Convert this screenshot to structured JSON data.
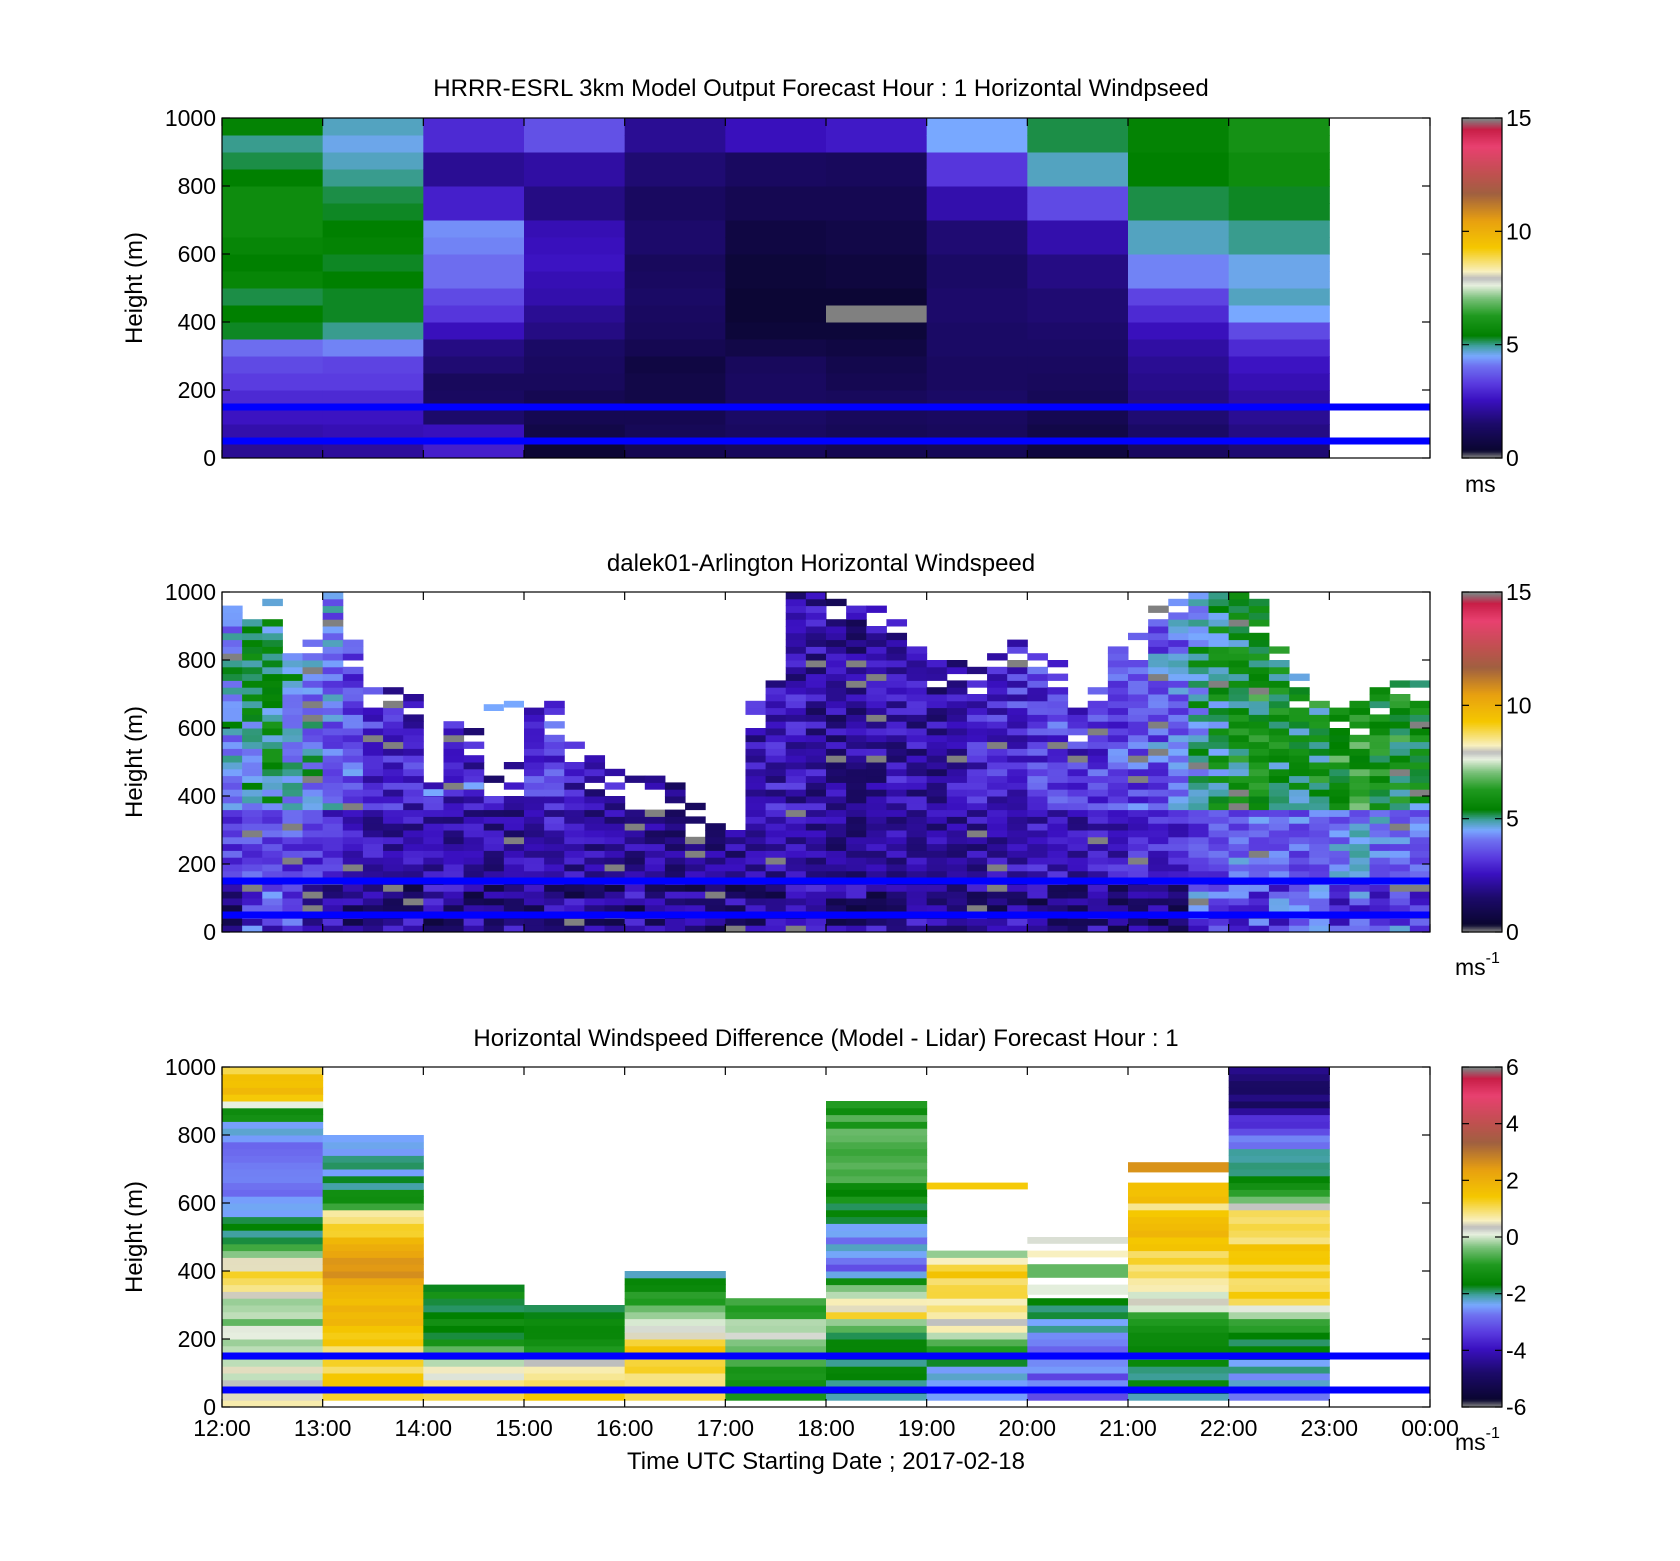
{
  "x_axis": {
    "ticks": [
      "12:00",
      "13:00",
      "14:00",
      "15:00",
      "16:00",
      "17:00",
      "18:00",
      "19:00",
      "20:00",
      "21:00",
      "22:00",
      "23:00",
      "00:00"
    ],
    "label": "Time UTC  Starting Date ; 2017-02-18"
  },
  "colormap": {
    "stops": [
      {
        "v": 0.0,
        "c": "#808080"
      },
      {
        "v": 0.02,
        "c": "#0a0630"
      },
      {
        "v": 0.1,
        "c": "#1c0a6a"
      },
      {
        "v": 0.17,
        "c": "#3a10c0"
      },
      {
        "v": 0.22,
        "c": "#5a3ce0"
      },
      {
        "v": 0.27,
        "c": "#6e70f0"
      },
      {
        "v": 0.3,
        "c": "#78a8ff"
      },
      {
        "v": 0.33,
        "c": "#40a0a0"
      },
      {
        "v": 0.36,
        "c": "#008000"
      },
      {
        "v": 0.42,
        "c": "#209a20"
      },
      {
        "v": 0.47,
        "c": "#78c078"
      },
      {
        "v": 0.51,
        "c": "#e8f0e0"
      },
      {
        "v": 0.53,
        "c": "#bdbdbd"
      },
      {
        "v": 0.55,
        "c": "#f8f0c0"
      },
      {
        "v": 0.62,
        "c": "#f5c800"
      },
      {
        "v": 0.7,
        "c": "#e8a010"
      },
      {
        "v": 0.78,
        "c": "#a06040"
      },
      {
        "v": 0.84,
        "c": "#c05050"
      },
      {
        "v": 0.92,
        "c": "#e84070"
      },
      {
        "v": 0.97,
        "c": "#c81e46"
      },
      {
        "v": 1.0,
        "c": "#808080"
      }
    ]
  },
  "reference_lines": {
    "heights_m": [
      150,
      50
    ],
    "color": "#0000ff"
  },
  "chart_data": [
    {
      "type": "heatmap",
      "title": "HRRR-ESRL 3km Model Output   Forecast Hour : 1 Horizontal Windpseed",
      "ylabel": "Height (m)",
      "ylim": [
        0,
        1000
      ],
      "yticks": [
        0,
        200,
        400,
        600,
        800,
        1000
      ],
      "xlim_hours": [
        12,
        24
      ],
      "colorbar": {
        "ticks": [
          0,
          5,
          10,
          15
        ],
        "range": [
          0,
          15
        ],
        "unit": "ms",
        "unit_sup": ""
      },
      "time_start": 12,
      "time_step": 1,
      "height_step_m": 50,
      "columns": [
        [
          2.0,
          2.3,
          2.6,
          3.0,
          3.3,
          3.5,
          4.0,
          5.3,
          5.4,
          5.2,
          5.6,
          5.4,
          5.6,
          5.8,
          5.8,
          5.8,
          5.4,
          5.2,
          5.0,
          5.5
        ],
        [
          2.1,
          2.4,
          2.6,
          3.0,
          3.3,
          3.4,
          4.2,
          5.0,
          5.3,
          5.3,
          5.4,
          5.3,
          5.5,
          5.4,
          5.3,
          5.2,
          5.0,
          4.8,
          4.6,
          4.8
        ],
        [
          2.8,
          2.5,
          1.5,
          1.3,
          1.2,
          1.6,
          1.8,
          2.5,
          3.2,
          3.5,
          4.0,
          4.0,
          4.2,
          4.3,
          2.8,
          2.8,
          2.0,
          2.0,
          3.0,
          3.0
        ],
        [
          0.4,
          0.8,
          1.0,
          1.0,
          1.2,
          1.3,
          1.4,
          1.8,
          2.0,
          2.3,
          2.4,
          2.6,
          2.5,
          2.4,
          1.8,
          1.8,
          2.2,
          2.2,
          3.6,
          3.6
        ],
        [
          1.0,
          1.1,
          1.0,
          0.8,
          0.8,
          0.7,
          1.0,
          1.2,
          1.3,
          1.4,
          1.3,
          1.2,
          1.5,
          1.5,
          1.3,
          1.3,
          1.6,
          1.6,
          2.0,
          2.0
        ],
        [
          1.2,
          1.3,
          1.4,
          1.3,
          1.3,
          1.2,
          0.8,
          0.5,
          0.4,
          0.4,
          0.5,
          0.5,
          0.7,
          0.7,
          1.0,
          1.0,
          1.3,
          1.3,
          2.5,
          2.5
        ],
        [
          1.0,
          1.1,
          1.2,
          1.2,
          1.0,
          0.9,
          0.7,
          0.5,
          0.0,
          0.4,
          0.6,
          0.6,
          0.8,
          0.8,
          1.0,
          1.0,
          1.2,
          1.2,
          2.7,
          2.7
        ],
        [
          1.1,
          1.2,
          1.3,
          1.4,
          1.3,
          1.3,
          1.4,
          1.4,
          1.5,
          1.5,
          1.4,
          1.4,
          1.6,
          1.6,
          2.3,
          2.3,
          3.2,
          3.2,
          4.5,
          4.5
        ],
        [
          0.6,
          0.8,
          1.0,
          1.1,
          1.2,
          1.3,
          1.4,
          1.5,
          1.6,
          1.6,
          1.8,
          1.8,
          2.3,
          2.3,
          3.5,
          3.5,
          4.8,
          4.8,
          5.2,
          5.2
        ],
        [
          1.3,
          1.4,
          1.6,
          1.8,
          1.9,
          2.0,
          2.2,
          2.5,
          3.0,
          3.4,
          4.2,
          4.2,
          4.8,
          4.8,
          5.2,
          5.2,
          5.4,
          5.4,
          5.5,
          5.5
        ],
        [
          1.6,
          1.8,
          2.0,
          2.2,
          2.4,
          2.6,
          3.0,
          3.5,
          4.5,
          4.8,
          4.6,
          4.6,
          5.0,
          5.0,
          5.3,
          5.3,
          5.8,
          5.8,
          6.0,
          6.0
        ]
      ]
    },
    {
      "type": "heatmap",
      "title": "dalek01-Arlington  Horizontal Windspeed",
      "ylabel": "Height (m)",
      "ylim": [
        0,
        1000
      ],
      "yticks": [
        0,
        200,
        400,
        600,
        800,
        1000
      ],
      "xlim_hours": [
        12,
        24
      ],
      "colorbar": {
        "ticks": [
          0,
          5,
          10,
          15
        ],
        "range": [
          0,
          15
        ],
        "unit": "ms",
        "unit_sup": "-1"
      },
      "time_start": 12,
      "time_step": 0.2,
      "height_step_m": 20,
      "top_m": [
        950,
        960,
        980,
        880,
        860,
        1000,
        860,
        720,
        720,
        720,
        690,
        620,
        600,
        500,
        500,
        660,
        680,
        560,
        520,
        500,
        460,
        450,
        440,
        370,
        340,
        340,
        680,
        760,
        1000,
        1000,
        980,
        960,
        960,
        940,
        900,
        820,
        800,
        800,
        860,
        860,
        820,
        820,
        660,
        720,
        840,
        900,
        960,
        980,
        1000,
        1000,
        1000,
        980,
        900,
        760,
        700,
        700,
        680,
        720,
        740,
        760
      ],
      "base_ms": [
        4.5,
        5.0,
        5.2,
        4.8,
        4.4,
        4.0,
        3.6,
        3.0,
        2.8,
        2.8,
        2.6,
        2.6,
        2.5,
        2.4,
        2.4,
        3.0,
        3.2,
        2.5,
        2.4,
        2.4,
        2.2,
        2.2,
        2.0,
        2.0,
        2.0,
        2.2,
        2.4,
        2.6,
        2.4,
        2.2,
        2.0,
        2.0,
        2.2,
        2.4,
        2.2,
        2.2,
        2.4,
        2.6,
        2.8,
        3.0,
        3.2,
        3.4,
        3.0,
        3.2,
        3.4,
        3.6,
        3.8,
        4.0,
        4.8,
        5.2,
        5.6,
        5.8,
        5.6,
        5.4,
        5.6,
        6.0,
        6.2,
        6.0,
        5.8,
        5.5
      ],
      "gap_hours": [
        [
          13.85,
          14.15
        ]
      ],
      "gap_fill_m": [
        [
          14.0,
          400
        ],
        [
          14.4,
          420
        ],
        [
          14.6,
          650
        ],
        [
          14.8,
          660
        ]
      ]
    },
    {
      "type": "heatmap",
      "title": "Horizontal Windspeed Difference (Model - Lidar) Forecast Hour : 1",
      "ylabel": "Height (m)",
      "ylim": [
        0,
        1000
      ],
      "yticks": [
        0,
        200,
        400,
        600,
        800,
        1000
      ],
      "xlim_hours": [
        12,
        24
      ],
      "xlabel": "Time UTC  Starting Date ; 2017-02-18",
      "colorbar": {
        "ticks": [
          -6,
          -4,
          -2,
          0,
          2,
          4,
          6
        ],
        "range": [
          -6,
          6
        ],
        "unit": "ms",
        "unit_sup": "-1"
      },
      "time_start": 12,
      "time_step": 1,
      "height_step_m": 20,
      "columns": [
        {
          "top": 1000,
          "profile": [
            [
              0,
              0.5
            ],
            [
              100,
              0.2
            ],
            [
              160,
              0.0
            ],
            [
              280,
              -0.3
            ],
            [
              340,
              1.0
            ],
            [
              420,
              0.8
            ],
            [
              480,
              -1.5
            ],
            [
              600,
              -2.8
            ],
            [
              800,
              -2.6
            ],
            [
              860,
              -1.0
            ],
            [
              900,
              1.5
            ],
            [
              1000,
              1.5
            ]
          ]
        },
        {
          "top": 800,
          "profile": [
            [
              0,
              1.5
            ],
            [
              150,
              1.2
            ],
            [
              300,
              1.8
            ],
            [
              400,
              2.5
            ],
            [
              520,
              1.3
            ],
            [
              560,
              0.5
            ],
            [
              600,
              -1.5
            ],
            [
              700,
              -2.2
            ],
            [
              800,
              -2.8
            ]
          ]
        },
        {
          "top": 360,
          "profile": [
            [
              0,
              1.2
            ],
            [
              120,
              0.2
            ],
            [
              200,
              -1.5
            ],
            [
              280,
              -1.8
            ],
            [
              360,
              -1.2
            ]
          ]
        },
        {
          "top": 300,
          "profile": [
            [
              0,
              1.5
            ],
            [
              100,
              0.4
            ],
            [
              160,
              -0.8
            ],
            [
              240,
              -1.4
            ],
            [
              300,
              -1.6
            ]
          ]
        },
        {
          "top": 400,
          "profile": [
            [
              0,
              0.8
            ],
            [
              160,
              1.5
            ],
            [
              220,
              0.5
            ],
            [
              280,
              -0.5
            ],
            [
              360,
              -1.5
            ],
            [
              400,
              -2.2
            ]
          ]
        },
        {
          "top": 320,
          "profile": [
            [
              0,
              -1.4
            ],
            [
              100,
              -0.8
            ],
            [
              200,
              0.2
            ],
            [
              260,
              -0.5
            ],
            [
              320,
              -1.0
            ]
          ]
        },
        {
          "top": 900,
          "profile": [
            [
              0,
              -2.0
            ],
            [
              200,
              -1.6
            ],
            [
              260,
              1.0
            ],
            [
              320,
              0.0
            ],
            [
              400,
              -2.8
            ],
            [
              500,
              -2.4
            ],
            [
              600,
              -1.4
            ],
            [
              750,
              -0.4
            ],
            [
              900,
              -1.2
            ]
          ]
        },
        {
          "top": 450,
          "profile": [
            [
              0,
              -2.8
            ],
            [
              140,
              -2.0
            ],
            [
              200,
              0.2
            ],
            [
              300,
              1.0
            ],
            [
              380,
              1.4
            ],
            [
              450,
              -0.4
            ]
          ],
          "extra": [
            [
              640,
              660,
              1.4
            ]
          ]
        },
        {
          "top": 310,
          "profile": [
            [
              0,
              -3.0
            ],
            [
              150,
              -2.8
            ],
            [
              240,
              -2.2
            ],
            [
              310,
              -1.6
            ]
          ],
          "extra": [
            [
              330,
              360,
              0.1
            ],
            [
              380,
              420,
              -0.5
            ],
            [
              440,
              460,
              0.6
            ],
            [
              480,
              500,
              0.2
            ]
          ]
        },
        {
          "top": 660,
          "profile": [
            [
              0,
              -2.0
            ],
            [
              150,
              -1.6
            ],
            [
              240,
              -0.8
            ],
            [
              300,
              0.2
            ],
            [
              400,
              1.2
            ],
            [
              500,
              1.5
            ],
            [
              580,
              1.2
            ],
            [
              660,
              1.8
            ]
          ],
          "extra": [
            [
              690,
              720,
              2.6
            ]
          ]
        },
        {
          "top": 1000,
          "profile": [
            [
              0,
              -2.6
            ],
            [
              150,
              -2.0
            ],
            [
              220,
              -1.2
            ],
            [
              260,
              0.0
            ],
            [
              320,
              1.3
            ],
            [
              500,
              1.2
            ],
            [
              560,
              0.8
            ],
            [
              620,
              -1.0
            ],
            [
              700,
              -2.0
            ],
            [
              820,
              -3.2
            ],
            [
              850,
              -4.2
            ],
            [
              880,
              -4.8
            ],
            [
              1000,
              -4.8
            ]
          ]
        }
      ]
    }
  ]
}
